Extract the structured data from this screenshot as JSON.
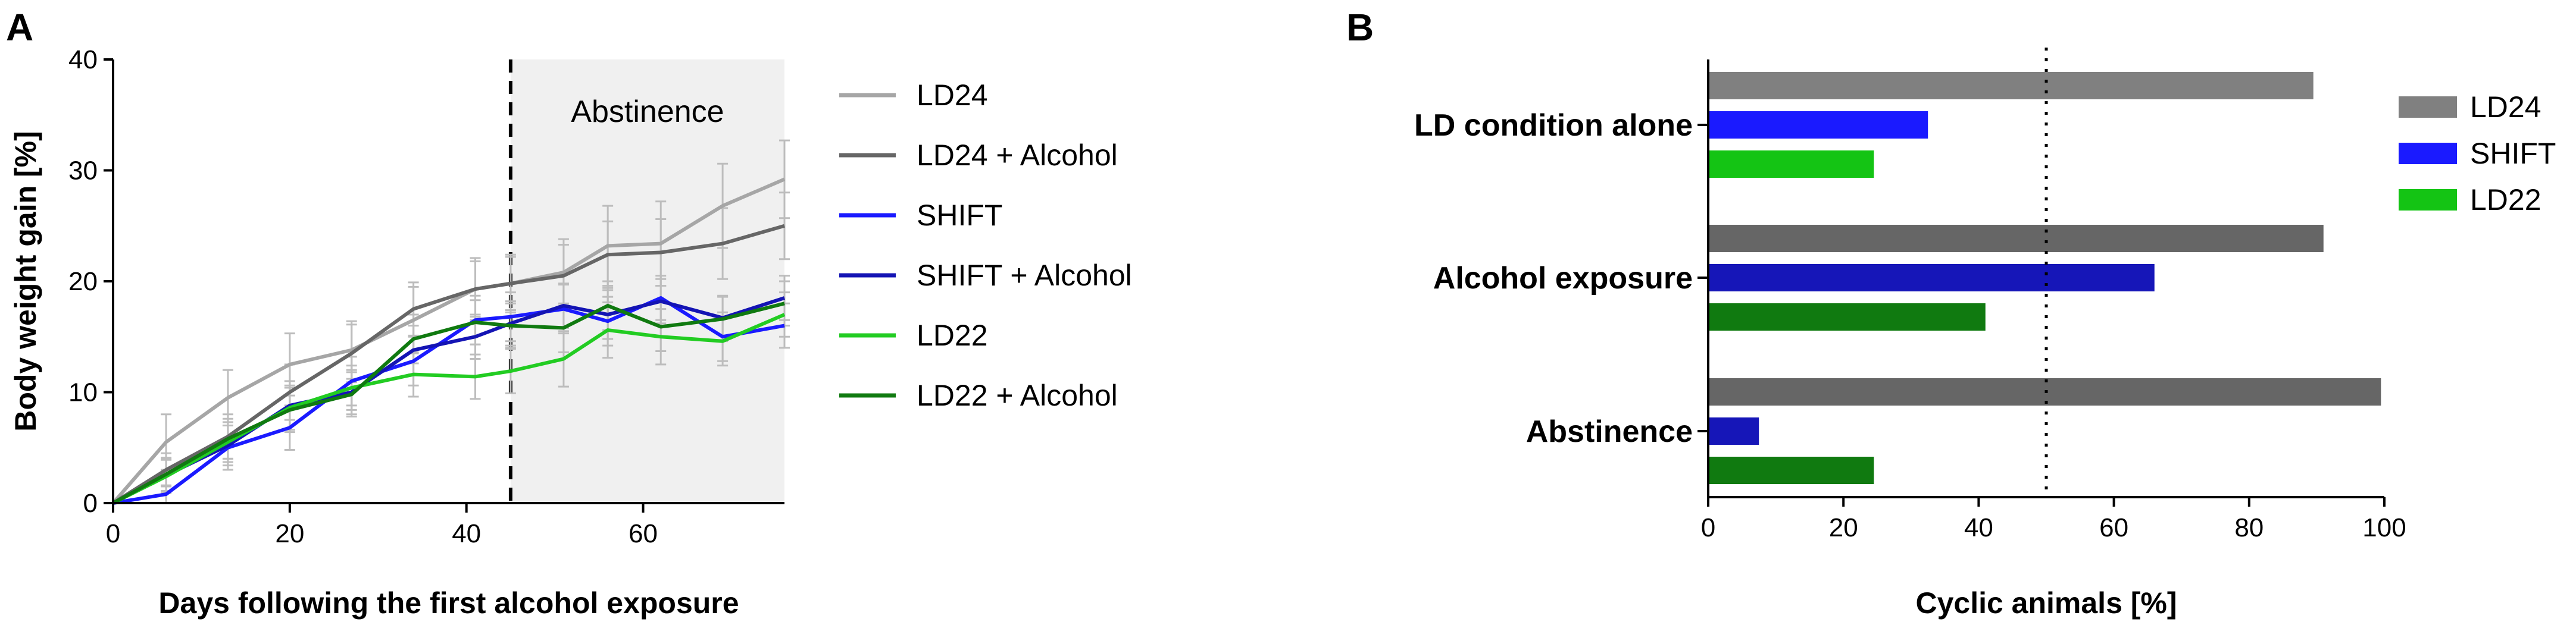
{
  "panelA": {
    "letter": "A",
    "annotation": "Abstinence",
    "chart_data": {
      "type": "line",
      "xlabel": "Days following the first alcohol exposure",
      "ylabel": "Body weight gain [%]",
      "xlim": [
        0,
        76
      ],
      "ylim": [
        0,
        40
      ],
      "xticks": [
        0,
        20,
        40,
        60
      ],
      "yticks": [
        0,
        10,
        20,
        30,
        40
      ],
      "abstinence_start_day": 45,
      "shaded_region": [
        45,
        76
      ],
      "x": [
        0,
        6,
        13,
        20,
        27,
        34,
        41,
        45,
        51,
        56,
        62,
        69,
        76
      ],
      "legend_position": "right",
      "series": [
        {
          "name": "LD24",
          "color": "#a6a6a6",
          "values": [
            0,
            5.5,
            9.5,
            12.5,
            13.8,
            16.5,
            19.3,
            19.8,
            20.8,
            23.2,
            23.4,
            26.8,
            29.2
          ],
          "err": [
            0,
            2.5,
            2.5,
            2.8,
            2.6,
            3.0,
            2.8,
            2.4,
            3.0,
            3.6,
            3.8,
            3.8,
            3.5
          ]
        },
        {
          "name": "LD24 + Alcohol",
          "color": "#666666",
          "values": [
            0,
            3.0,
            6.0,
            10.0,
            13.5,
            17.5,
            19.3,
            19.8,
            20.5,
            22.4,
            22.6,
            23.4,
            25.0
          ],
          "err": [
            0,
            1.5,
            2.0,
            2.5,
            2.6,
            2.4,
            2.5,
            2.6,
            2.8,
            3.0,
            3.0,
            3.2,
            3.0
          ]
        },
        {
          "name": "SHIFT",
          "color": "#1a1aff",
          "values": [
            0,
            0.8,
            5.0,
            6.8,
            11.0,
            12.8,
            16.5,
            16.8,
            17.5,
            16.4,
            18.5,
            15.0,
            16.0
          ],
          "err": [
            0,
            0.8,
            2.0,
            2.0,
            2.2,
            2.2,
            2.2,
            2.2,
            2.2,
            2.2,
            2.0,
            2.2,
            2.0
          ]
        },
        {
          "name": "SHIFT + Alcohol",
          "color": "#1414b4",
          "values": [
            0,
            2.5,
            5.2,
            8.8,
            10.0,
            13.8,
            15.0,
            16.2,
            17.8,
            17.0,
            18.2,
            16.7,
            18.5
          ],
          "err": [
            0,
            1.5,
            1.8,
            2.2,
            2.0,
            2.2,
            2.0,
            2.0,
            2.0,
            2.2,
            2.0,
            2.0,
            2.0
          ]
        },
        {
          "name": "LD22",
          "color": "#22cc22",
          "values": [
            0,
            2.4,
            5.5,
            8.6,
            10.4,
            11.6,
            11.4,
            11.9,
            13.0,
            15.6,
            15.0,
            14.6,
            17.0
          ],
          "err": [
            0,
            1.5,
            1.8,
            2.0,
            2.0,
            2.0,
            2.0,
            2.0,
            2.5,
            2.5,
            2.5,
            2.2,
            2.0
          ]
        },
        {
          "name": "LD22 + Alcohol",
          "color": "#107a10",
          "values": [
            0,
            2.6,
            5.8,
            8.4,
            9.8,
            14.8,
            16.3,
            16.0,
            15.8,
            17.8,
            15.9,
            16.6,
            18.0
          ],
          "err": [
            0,
            1.5,
            1.8,
            2.0,
            2.0,
            2.2,
            2.0,
            2.0,
            2.2,
            2.2,
            2.2,
            2.0,
            2.0
          ]
        }
      ]
    }
  },
  "panelB": {
    "letter": "B",
    "chart_data": {
      "type": "bar",
      "orientation": "horizontal",
      "xlabel": "Cyclic animals [%]",
      "xlim": [
        0,
        100
      ],
      "xticks": [
        0,
        20,
        40,
        60,
        80,
        100
      ],
      "reference_line": 50,
      "categories": [
        "LD condition alone",
        "Alcohol exposure",
        "Abstinence"
      ],
      "legend_position": "top-right",
      "legend": [
        {
          "name": "LD24",
          "color": "#808080"
        },
        {
          "name": "SHIFT",
          "color": "#1a1aff"
        },
        {
          "name": "LD22",
          "color": "#14c414"
        }
      ],
      "bars": [
        [
          {
            "value": 89.5,
            "color": "#808080"
          },
          {
            "value": 32.5,
            "color": "#1a1aff"
          },
          {
            "value": 24.5,
            "color": "#14c414"
          }
        ],
        [
          {
            "value": 91,
            "color": "#666666"
          },
          {
            "value": 66,
            "color": "#1616b8"
          },
          {
            "value": 41,
            "color": "#107a10"
          }
        ],
        [
          {
            "value": 99.5,
            "color": "#666666"
          },
          {
            "value": 7.5,
            "color": "#1616b8"
          },
          {
            "value": 24.5,
            "color": "#107a10"
          }
        ]
      ]
    }
  }
}
